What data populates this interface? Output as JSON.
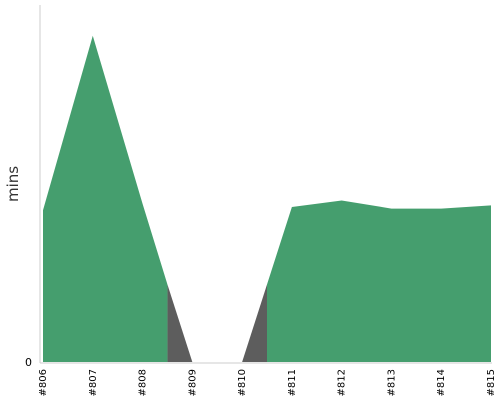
{
  "chart_data": {
    "type": "area",
    "title": "",
    "xlabel": "",
    "ylabel": "mins",
    "categories": [
      "#806",
      "#807",
      "#808",
      "#809",
      "#810",
      "#811",
      "#812",
      "#813",
      "#814",
      "#815"
    ],
    "y_tick_labels": [
      "0"
    ],
    "ylim": [
      0,
      100
    ],
    "grid": false,
    "legend": "none",
    "series": [
      {
        "status_color": "#459e6e",
        "values": [
          47,
          101,
          49,
          null,
          null,
          48,
          50,
          47.5,
          47.5,
          48.5
        ]
      }
    ],
    "failed_segments": {
      "color": "#5d5d5d",
      "values": [
        [
          24,
          0
        ],
        [
          0,
          24
        ]
      ]
    }
  }
}
